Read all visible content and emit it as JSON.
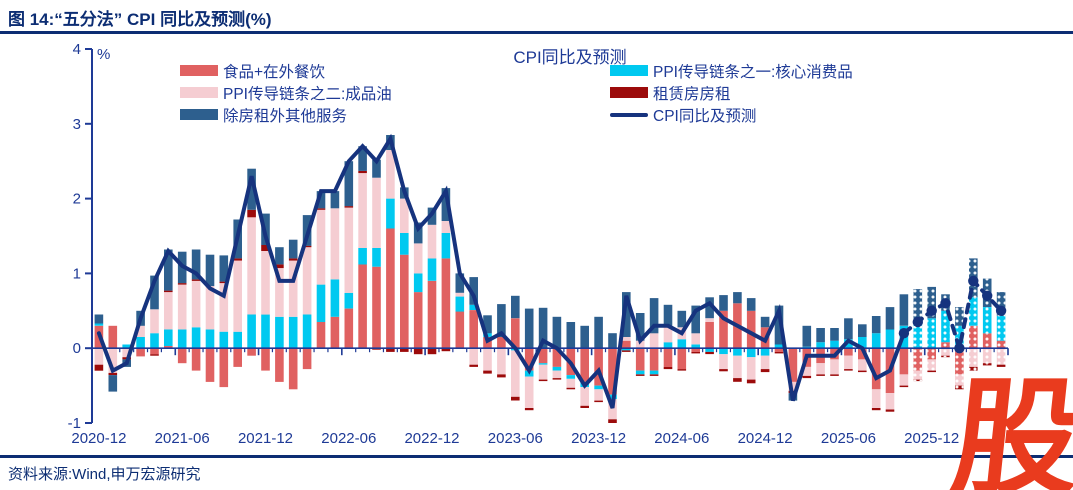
{
  "page": {
    "title": "图 14:“五分法” CPI 同比及预测(%)",
    "source": "资料来源:Wind,申万宏源研究",
    "watermark": "股"
  },
  "colors": {
    "title_navy": "#0c2d73",
    "text_blue": "#1e3a96",
    "axis_blue": "#1e3a96",
    "watermark_red": "#e93b1e"
  },
  "chart_data": {
    "type": "bar",
    "subtype": "stacked-bar-with-line",
    "title": "CPI同比及预测",
    "unit_label": "%",
    "ylim": [
      -1,
      4
    ],
    "yticks": [
      4,
      3,
      2,
      1,
      0,
      -1
    ],
    "x_tick_labels": [
      "2020-12",
      "2021-06",
      "2021-12",
      "2022-06",
      "2022-12",
      "2023-06",
      "2023-12",
      "2024-06",
      "2024-12",
      "2025-06",
      "2025-12"
    ],
    "x_tick_interval": 6,
    "forecast_start_index": 59,
    "marker_start_index": 58,
    "legend_columns": [
      [
        0,
        2,
        4
      ],
      [
        1,
        3,
        5
      ]
    ],
    "categories": [
      "2020-12",
      "2021-01",
      "2021-02",
      "2021-03",
      "2021-04",
      "2021-05",
      "2021-06",
      "2021-07",
      "2021-08",
      "2021-09",
      "2021-10",
      "2021-11",
      "2021-12",
      "2022-01",
      "2022-02",
      "2022-03",
      "2022-04",
      "2022-05",
      "2022-06",
      "2022-07",
      "2022-08",
      "2022-09",
      "2022-10",
      "2022-11",
      "2022-12",
      "2023-01",
      "2023-02",
      "2023-03",
      "2023-04",
      "2023-05",
      "2023-06",
      "2023-07",
      "2023-08",
      "2023-09",
      "2023-10",
      "2023-11",
      "2023-12",
      "2024-01",
      "2024-02",
      "2024-03",
      "2024-04",
      "2024-05",
      "2024-06",
      "2024-07",
      "2024-08",
      "2024-09",
      "2024-10",
      "2024-11",
      "2024-12",
      "2025-01",
      "2025-02",
      "2025-03",
      "2025-04",
      "2025-05",
      "2025-06",
      "2025-07",
      "2025-08",
      "2025-09",
      "2025-10",
      "2025-11",
      "2025-12",
      "2026-01",
      "2026-02",
      "2026-03",
      "2026-04",
      "2026-05"
    ],
    "series": [
      {
        "name": "食品+在外餐饮",
        "type": "bar",
        "color": "#e06161",
        "values": [
          0.3,
          0.3,
          0.0,
          -0.11,
          -0.08,
          0.03,
          -0.2,
          -0.3,
          -0.45,
          -0.52,
          -0.25,
          -0.1,
          -0.3,
          -0.45,
          -0.55,
          -0.28,
          0.35,
          0.42,
          0.53,
          1.12,
          1.09,
          1.6,
          1.25,
          0.75,
          0.9,
          1.2,
          0.49,
          0.51,
          0.15,
          0.15,
          0.4,
          -0.3,
          -0.2,
          -0.25,
          -0.36,
          -0.45,
          -0.5,
          -0.62,
          0.1,
          -0.3,
          -0.3,
          -0.25,
          -0.28,
          -0.05,
          0.35,
          0.5,
          0.6,
          0.5,
          0.28,
          -0.05,
          -0.45,
          -0.25,
          -0.2,
          -0.15,
          -0.1,
          -0.15,
          -0.55,
          -0.6,
          -0.35,
          -0.3,
          -0.15,
          0.08,
          -0.35,
          0.3,
          0.2,
          0.1
        ]
      },
      {
        "name": "PPI传导链条之一:核心消费品",
        "type": "bar",
        "color": "#00c9f0",
        "values": [
          0.03,
          0.0,
          0.05,
          0.15,
          0.2,
          0.22,
          0.25,
          0.28,
          0.25,
          0.22,
          0.22,
          0.45,
          0.45,
          0.42,
          0.42,
          0.45,
          0.5,
          0.5,
          0.21,
          0.22,
          0.25,
          0.4,
          0.29,
          0.25,
          0.3,
          0.34,
          0.2,
          0.07,
          0.05,
          0.0,
          -0.03,
          -0.08,
          -0.02,
          -0.05,
          -0.05,
          -0.07,
          -0.05,
          -0.06,
          -0.03,
          -0.05,
          -0.05,
          0.08,
          0.12,
          0.05,
          -0.05,
          -0.08,
          -0.1,
          -0.12,
          -0.1,
          0.05,
          0.0,
          0.02,
          0.08,
          0.1,
          0.12,
          0.15,
          0.2,
          0.25,
          0.3,
          0.35,
          0.4,
          0.42,
          0.3,
          0.38,
          0.35,
          0.33
        ]
      },
      {
        "name": "PPI传导链条之二:成品油",
        "type": "bar",
        "color": "#f5cdd2",
        "values": [
          -0.22,
          -0.33,
          -0.12,
          0.15,
          0.32,
          0.5,
          0.6,
          0.62,
          0.58,
          0.65,
          0.95,
          1.3,
          0.85,
          0.65,
          0.75,
          0.9,
          1.0,
          0.95,
          1.14,
          1.0,
          0.94,
          0.65,
          0.46,
          0.4,
          0.45,
          0.16,
          0.05,
          -0.22,
          -0.3,
          -0.35,
          -0.62,
          -0.42,
          -0.2,
          -0.1,
          -0.12,
          -0.25,
          -0.15,
          -0.27,
          0.05,
          0.1,
          0.2,
          0.22,
          0.16,
          0.15,
          0.05,
          -0.2,
          -0.3,
          -0.3,
          -0.18,
          0.0,
          -0.12,
          -0.12,
          -0.15,
          -0.2,
          -0.18,
          -0.15,
          -0.25,
          -0.22,
          -0.15,
          -0.12,
          -0.15,
          -0.1,
          -0.15,
          -0.25,
          -0.2,
          -0.22
        ]
      },
      {
        "name": "租赁房房租",
        "type": "bar",
        "color": "#9c0b0b",
        "values": [
          -0.08,
          -0.03,
          -0.03,
          0.0,
          -0.02,
          0.02,
          0.02,
          0.02,
          0.0,
          0.02,
          0.03,
          0.1,
          0.08,
          0.05,
          0.03,
          0.02,
          0.02,
          0.0,
          0.02,
          0.03,
          -0.02,
          -0.05,
          -0.05,
          -0.08,
          -0.08,
          -0.04,
          0.0,
          -0.03,
          -0.04,
          -0.04,
          -0.05,
          -0.03,
          -0.02,
          -0.02,
          -0.02,
          -0.03,
          -0.02,
          -0.05,
          -0.02,
          -0.02,
          -0.02,
          -0.03,
          -0.02,
          -0.02,
          -0.03,
          -0.03,
          -0.05,
          -0.05,
          -0.04,
          -0.02,
          -0.03,
          -0.03,
          -0.02,
          -0.02,
          -0.02,
          -0.02,
          -0.03,
          -0.03,
          -0.02,
          -0.02,
          -0.02,
          -0.02,
          -0.05,
          -0.05,
          -0.03,
          -0.03
        ]
      },
      {
        "name": "除房租外其他服务",
        "type": "bar",
        "color": "#2d5f8e",
        "values": [
          0.12,
          -0.22,
          -0.1,
          0.2,
          0.45,
          0.55,
          0.42,
          0.4,
          0.42,
          0.35,
          0.52,
          0.55,
          0.42,
          0.23,
          0.25,
          0.41,
          0.23,
          0.23,
          0.6,
          0.33,
          0.24,
          0.2,
          0.15,
          0.28,
          0.23,
          0.44,
          0.26,
          0.37,
          0.24,
          0.44,
          0.3,
          0.53,
          0.54,
          0.42,
          0.35,
          0.3,
          0.42,
          0.2,
          0.6,
          0.37,
          0.47,
          0.28,
          0.22,
          0.37,
          0.28,
          0.21,
          0.15,
          0.17,
          0.14,
          0.52,
          -0.1,
          0.28,
          0.19,
          0.17,
          0.28,
          0.17,
          0.23,
          0.3,
          0.42,
          0.44,
          0.42,
          0.22,
          0.25,
          0.52,
          0.38,
          0.32
        ]
      },
      {
        "name": "CPI同比及预测",
        "type": "line",
        "color": "#16337e",
        "values": [
          0.2,
          -0.3,
          -0.2,
          0.4,
          0.9,
          1.3,
          1.1,
          1.0,
          0.8,
          0.7,
          1.5,
          2.3,
          1.5,
          0.9,
          0.9,
          1.5,
          2.1,
          2.1,
          2.5,
          2.7,
          2.5,
          2.8,
          2.1,
          1.6,
          1.8,
          2.1,
          1.0,
          0.7,
          0.1,
          0.2,
          0.0,
          -0.3,
          0.1,
          0.0,
          -0.2,
          -0.5,
          -0.3,
          -0.8,
          0.7,
          0.1,
          0.3,
          0.3,
          0.2,
          0.5,
          0.6,
          0.4,
          0.3,
          0.2,
          0.1,
          0.5,
          -0.7,
          -0.1,
          -0.1,
          -0.1,
          0.1,
          0.0,
          -0.4,
          -0.3,
          0.2,
          0.35,
          0.5,
          0.6,
          0.0,
          0.9,
          0.7,
          0.5
        ]
      }
    ]
  }
}
